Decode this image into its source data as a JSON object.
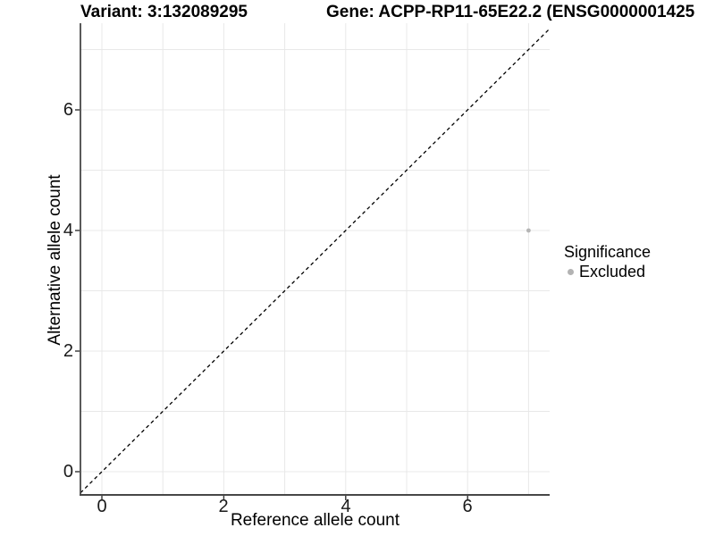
{
  "titles": {
    "variant": "Variant: 3:132089295",
    "gene": "Gene: ACPP-RP11-65E22.2 (ENSG0000001425"
  },
  "axes": {
    "x": {
      "title": "Reference allele count",
      "tick_labels": [
        "0",
        "2",
        "4",
        "6"
      ]
    },
    "y": {
      "title": "Alternative allele count",
      "tick_labels": [
        "0",
        "2",
        "4",
        "6"
      ]
    }
  },
  "legend": {
    "title": "Significance",
    "items": [
      {
        "label": "Excluded",
        "color": "#b3b3b3"
      }
    ]
  },
  "colors": {
    "background": "#ffffff",
    "grid": "#e8e8e8",
    "axis_line": "#474747",
    "tick_mark": "#333333",
    "text": "#000000",
    "reference_line": "#000000",
    "point": "#b5b5b5"
  },
  "chart_data": {
    "type": "scatter",
    "title_left": "Variant: 3:132089295",
    "title_right": "Gene: ACPP-RP11-65E22.2 (ENSG0000001425",
    "xlabel": "Reference allele count",
    "ylabel": "Alternative allele count",
    "xlim": [
      -0.35,
      7.35
    ],
    "ylim": [
      -0.37,
      7.45
    ],
    "x_ticks": [
      0,
      2,
      4,
      6
    ],
    "y_ticks": [
      0,
      2,
      4,
      6
    ],
    "x_gridlines": [
      0,
      1,
      2,
      3,
      4,
      5,
      6,
      7
    ],
    "y_gridlines": [
      0,
      1,
      2,
      3,
      4,
      5,
      6,
      7
    ],
    "grid": true,
    "legend_position": "right",
    "series": [
      {
        "name": "Excluded",
        "color": "#b5b5b5",
        "points": [
          {
            "x": 7,
            "y": 4
          }
        ]
      }
    ],
    "reference_line": {
      "equation": "y = x",
      "style": "dashed",
      "color": "#000000"
    }
  }
}
